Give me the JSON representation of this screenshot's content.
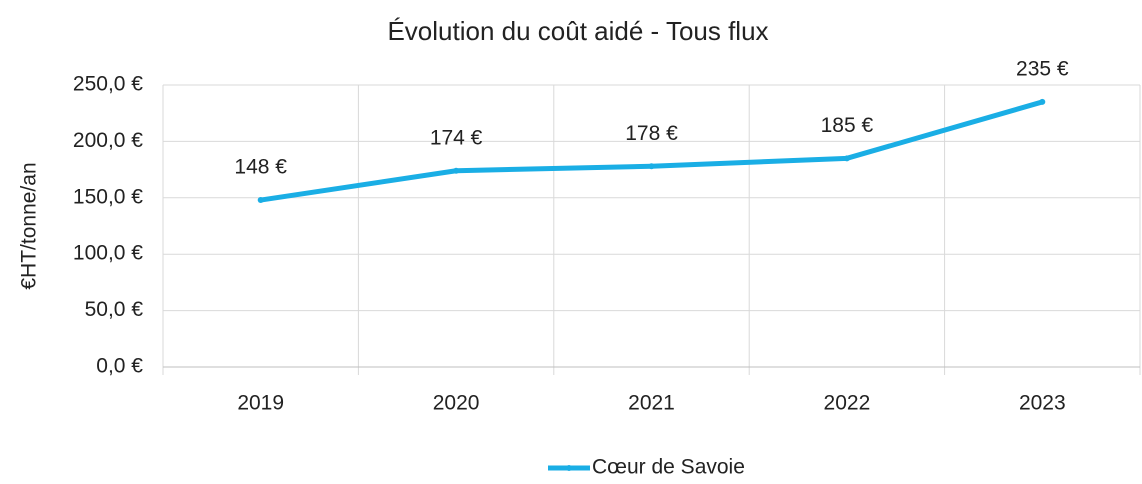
{
  "chart_data": {
    "type": "line",
    "title": "Évolution du coût aidé - Tous flux",
    "ylabel": "€HT/tonne/an",
    "categories": [
      "2019",
      "2020",
      "2021",
      "2022",
      "2023"
    ],
    "series": [
      {
        "name": "Cœur de Savoie",
        "color": "#1aaee5",
        "values": [
          148,
          174,
          178,
          185,
          235
        ],
        "value_labels": [
          "148 €",
          "174 €",
          "178 €",
          "185 €",
          "235 €"
        ]
      }
    ],
    "ylim": [
      0,
      250
    ],
    "yticks": [
      {
        "value": 0,
        "label": "0,0 €"
      },
      {
        "value": 50,
        "label": "50,0 €"
      },
      {
        "value": 100,
        "label": "100,0 €"
      },
      {
        "value": 150,
        "label": "150,0 €"
      },
      {
        "value": 200,
        "label": "200,0 €"
      },
      {
        "value": 250,
        "label": "250,0 €"
      }
    ],
    "grid": true,
    "legend": "bottom"
  }
}
